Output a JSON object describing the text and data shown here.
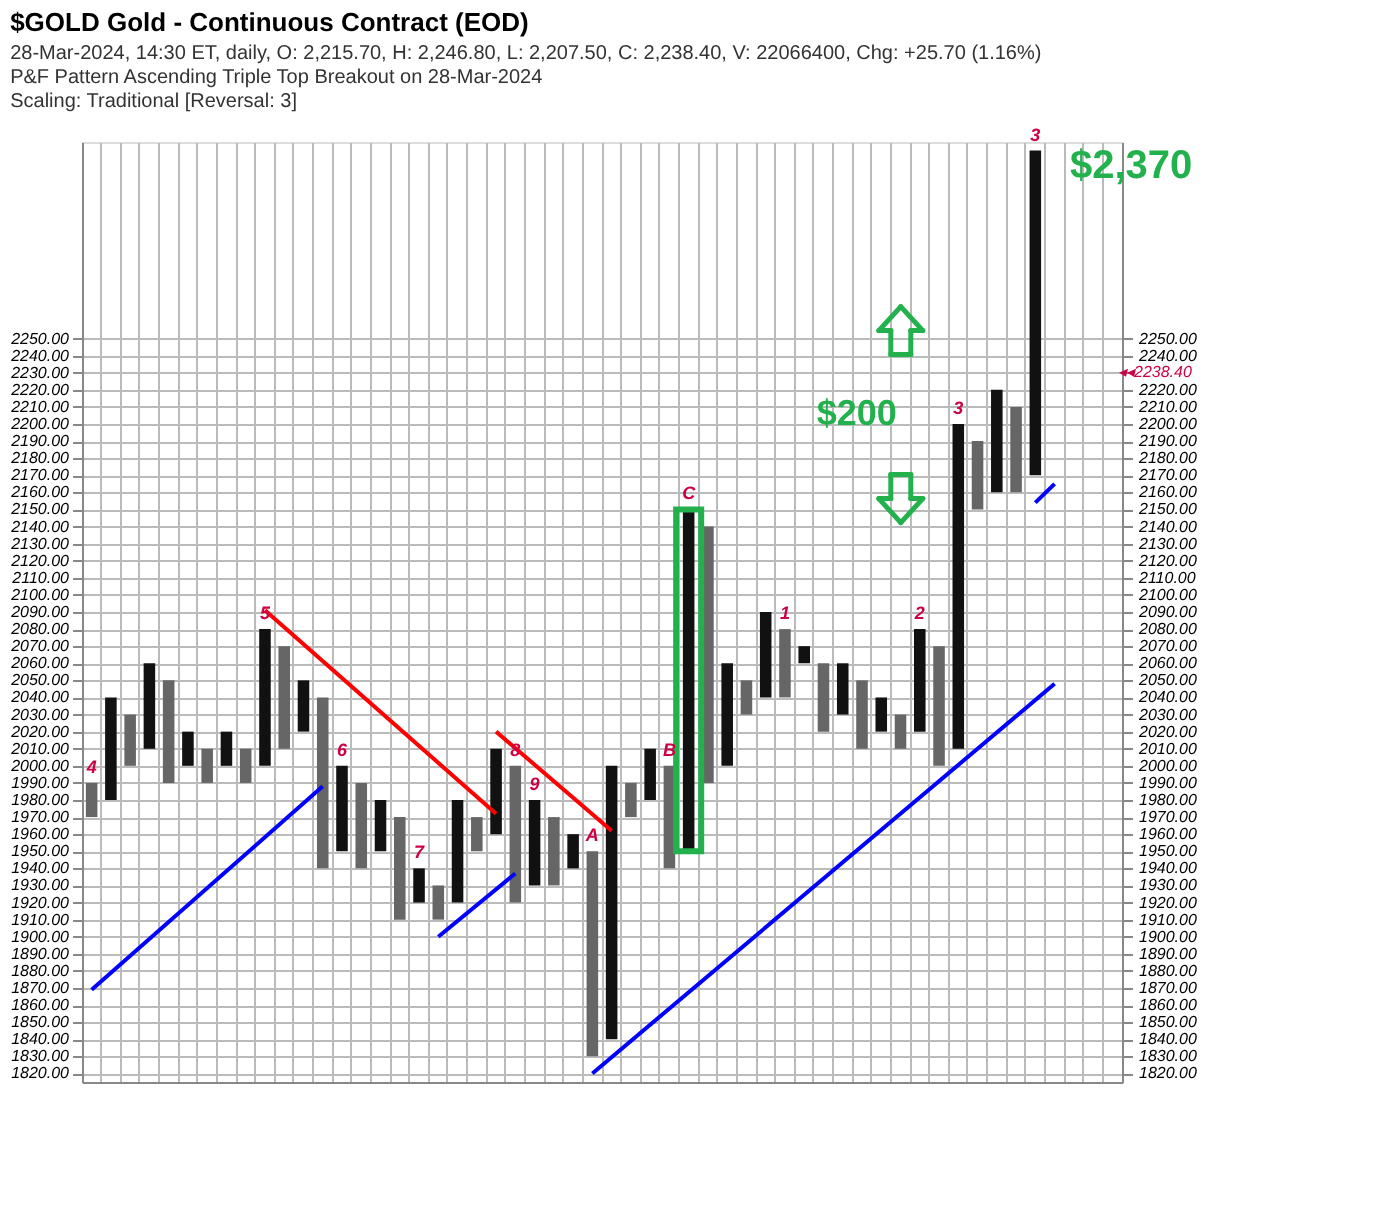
{
  "chart_data": {
    "type": "bar",
    "title": "$GOLD  Gold - Continuous Contract (EOD)",
    "subtitle": [
      "28-Mar-2024, 14:30 ET, daily, O: 2,215.70, H: 2,246.80, L: 2,207.50, C: 2,238.40, V: 22066400, Chg: +25.70 (1.16%)",
      "P&F Pattern  Ascending Triple Top Breakout on 28-Mar-2024",
      "Scaling: Traditional [Reversal: 3]"
    ],
    "categories": [
      "4",
      null,
      null,
      null,
      null,
      null,
      null,
      null,
      null,
      "5",
      null,
      null,
      null,
      "6",
      null,
      null,
      null,
      "7",
      null,
      null,
      null,
      null,
      "8",
      "9",
      null,
      null,
      "A",
      null,
      null,
      null,
      "B",
      "C",
      null,
      null,
      null,
      null,
      "1",
      null,
      null,
      null,
      null,
      null,
      null,
      "2",
      null,
      "3",
      null,
      null,
      null,
      "3",
      null,
      null,
      null,
      null
    ],
    "series": [
      {
        "color": "#666666",
        "base": [
          1970,
          null,
          2000,
          null,
          1990,
          null,
          1990,
          null,
          1990,
          null,
          2010,
          null,
          1940,
          null,
          1940,
          null,
          1910,
          null,
          1910,
          null,
          1950,
          null,
          1920,
          null,
          1930,
          null,
          1830,
          null,
          1970,
          null,
          1940,
          null,
          1990,
          null,
          2030,
          null,
          2040,
          null,
          2020,
          null,
          2010,
          null,
          2010,
          null,
          2000,
          null,
          2150,
          null,
          2160,
          null,
          null,
          null,
          null,
          null
        ],
        "values": [
          20,
          null,
          30,
          null,
          60,
          null,
          20,
          null,
          20,
          null,
          60,
          null,
          100,
          null,
          50,
          null,
          60,
          null,
          20,
          null,
          20,
          null,
          80,
          null,
          40,
          null,
          120,
          null,
          20,
          null,
          60,
          null,
          150,
          null,
          20,
          null,
          40,
          null,
          40,
          null,
          40,
          null,
          20,
          null,
          70,
          null,
          40,
          null,
          50,
          null,
          null,
          null,
          null,
          null
        ]
      },
      {
        "color": "#111111",
        "base": [
          null,
          1980,
          null,
          2010,
          null,
          2000,
          null,
          2000,
          null,
          2000,
          null,
          2020,
          null,
          1950,
          null,
          1950,
          null,
          1920,
          null,
          1920,
          null,
          1960,
          null,
          1930,
          null,
          1940,
          null,
          1840,
          null,
          1980,
          null,
          1950,
          null,
          2000,
          null,
          2040,
          null,
          2060,
          null,
          2030,
          null,
          2020,
          null,
          2020,
          null,
          2010,
          null,
          2160,
          null,
          2170,
          null,
          null,
          null,
          null
        ],
        "values": [
          null,
          60,
          null,
          50,
          null,
          20,
          null,
          20,
          null,
          80,
          null,
          30,
          null,
          50,
          null,
          30,
          null,
          20,
          null,
          60,
          null,
          50,
          null,
          50,
          null,
          20,
          null,
          160,
          null,
          30,
          null,
          200,
          null,
          60,
          null,
          50,
          null,
          10,
          null,
          30,
          null,
          20,
          null,
          60,
          null,
          190,
          null,
          60,
          null,
          190,
          null,
          null,
          null,
          null
        ]
      },
      {
        "type": "line",
        "color": "#ff0000",
        "values": [
          null,
          null,
          null,
          null,
          null,
          null,
          null,
          null,
          null,
          2091,
          null,
          null,
          null,
          null,
          null,
          null,
          null,
          null,
          null,
          null,
          null,
          1972,
          null,
          null,
          null,
          null,
          null,
          null,
          null,
          null,
          null,
          null,
          null,
          null,
          null,
          null,
          null,
          null,
          null,
          null,
          null,
          null,
          null,
          null,
          null,
          null,
          null,
          null,
          null,
          null,
          null,
          null,
          null,
          null
        ]
      },
      {
        "type": "line",
        "color": "#ff0000",
        "values": [
          null,
          null,
          null,
          null,
          null,
          null,
          null,
          null,
          null,
          null,
          null,
          null,
          null,
          null,
          null,
          null,
          null,
          null,
          null,
          null,
          null,
          2020,
          null,
          null,
          null,
          null,
          null,
          1962,
          null,
          null,
          null,
          null,
          null,
          null,
          null,
          null,
          null,
          null,
          null,
          null,
          null,
          null,
          null,
          null,
          null,
          null,
          null,
          null,
          null,
          null,
          null,
          null,
          null,
          null
        ]
      },
      {
        "type": "line",
        "color": "#0000ff",
        "values": [
          1869,
          null,
          null,
          null,
          null,
          null,
          null,
          null,
          null,
          null,
          null,
          null,
          1988,
          null,
          null,
          null,
          null,
          null,
          null,
          null,
          null,
          null,
          null,
          null,
          null,
          null,
          null,
          null,
          null,
          null,
          null,
          null,
          null,
          null,
          null,
          null,
          null,
          null,
          null,
          null,
          null,
          null,
          null,
          null,
          null,
          null,
          null,
          null,
          null,
          null,
          null,
          null,
          null,
          null
        ]
      },
      {
        "type": "line",
        "color": "#0000ff",
        "values": [
          null,
          null,
          null,
          null,
          null,
          null,
          null,
          null,
          null,
          null,
          null,
          null,
          null,
          null,
          null,
          null,
          null,
          null,
          1900,
          null,
          null,
          null,
          1937,
          null,
          null,
          null,
          null,
          null,
          null,
          null,
          null,
          null,
          null,
          null,
          null,
          null,
          null,
          null,
          null,
          null,
          null,
          null,
          null,
          null,
          null,
          null,
          null,
          null,
          null,
          null,
          null,
          null,
          null,
          null
        ]
      },
      {
        "type": "line",
        "color": "#0000ff",
        "values": [
          null,
          null,
          null,
          null,
          null,
          null,
          null,
          null,
          null,
          null,
          null,
          null,
          null,
          null,
          null,
          null,
          null,
          null,
          null,
          null,
          null,
          null,
          null,
          null,
          null,
          null,
          1820,
          null,
          null,
          null,
          null,
          null,
          null,
          null,
          null,
          null,
          null,
          null,
          null,
          null,
          null,
          null,
          null,
          null,
          null,
          null,
          null,
          null,
          null,
          null,
          2048,
          null,
          null,
          null
        ]
      },
      {
        "type": "line",
        "color": "#0000ff",
        "values": [
          null,
          null,
          null,
          null,
          null,
          null,
          null,
          null,
          null,
          null,
          null,
          null,
          null,
          null,
          null,
          null,
          null,
          null,
          null,
          null,
          null,
          null,
          null,
          null,
          null,
          null,
          null,
          null,
          null,
          null,
          null,
          null,
          null,
          null,
          null,
          null,
          null,
          null,
          null,
          null,
          null,
          null,
          null,
          null,
          null,
          null,
          null,
          null,
          null,
          2154,
          2165,
          null,
          null,
          null
        ]
      }
    ],
    "ylim": [
      1815,
      2365
    ],
    "yticks": [
      {
        "value": 1820,
        "label": "1820.00"
      },
      {
        "value": 1830,
        "label": "1830.00"
      },
      {
        "value": 1840,
        "label": "1840.00"
      },
      {
        "value": 1850,
        "label": "1850.00"
      },
      {
        "value": 1860,
        "label": "1860.00"
      },
      {
        "value": 1870,
        "label": "1870.00"
      },
      {
        "value": 1880,
        "label": "1880.00"
      },
      {
        "value": 1890,
        "label": "1890.00"
      },
      {
        "value": 1900,
        "label": "1900.00"
      },
      {
        "value": 1910,
        "label": "1910.00"
      },
      {
        "value": 1920,
        "label": "1920.00"
      },
      {
        "value": 1930,
        "label": "1930.00"
      },
      {
        "value": 1940,
        "label": "1940.00"
      },
      {
        "value": 1950,
        "label": "1950.00"
      },
      {
        "value": 1960,
        "label": "1960.00"
      },
      {
        "value": 1970,
        "label": "1970.00"
      },
      {
        "value": 1980,
        "label": "1980.00"
      },
      {
        "value": 1990,
        "label": "1990.00"
      },
      {
        "value": 2000,
        "label": "2000.00"
      },
      {
        "value": 2010,
        "label": "2010.00"
      },
      {
        "value": 2020,
        "label": "2020.00"
      },
      {
        "value": 2030,
        "label": "2030.00"
      },
      {
        "value": 2040,
        "label": "2040.00"
      },
      {
        "value": 2050,
        "label": "2050.00"
      },
      {
        "value": 2060,
        "label": "2060.00"
      },
      {
        "value": 2070,
        "label": "2070.00"
      },
      {
        "value": 2080,
        "label": "2080.00"
      },
      {
        "value": 2090,
        "label": "2090.00"
      },
      {
        "value": 2100,
        "label": "2100.00"
      },
      {
        "value": 2110,
        "label": "2110.00"
      },
      {
        "value": 2120,
        "label": "2120.00"
      },
      {
        "value": 2130,
        "label": "2130.00"
      },
      {
        "value": 2140,
        "label": "2140.00"
      },
      {
        "value": 2150,
        "label": "2150.00"
      },
      {
        "value": 2160,
        "label": "2160.00"
      },
      {
        "value": 2170,
        "label": "2170.00"
      },
      {
        "value": 2180,
        "label": "2180.00"
      },
      {
        "value": 2190,
        "label": "2190.00"
      },
      {
        "value": 2200,
        "label": "2200.00"
      },
      {
        "value": 2210,
        "label": "2210.00"
      },
      {
        "value": 2220,
        "label": "2220.00"
      },
      {
        "value": 2230,
        "label": "2230.00"
      },
      {
        "value": 2240,
        "label": "2240.00"
      },
      {
        "value": 2250,
        "label": "2250.00"
      }
    ],
    "y2lim": [
      1815,
      2365
    ],
    "y2ticks": [
      {
        "value": 1820,
        "label": "1820.00"
      },
      {
        "value": 1830,
        "label": "1830.00"
      },
      {
        "value": 1840,
        "label": "1840.00"
      },
      {
        "value": 1850,
        "label": "1850.00"
      },
      {
        "value": 1860,
        "label": "1860.00"
      },
      {
        "value": 1870,
        "label": "1870.00"
      },
      {
        "value": 1880,
        "label": "1880.00"
      },
      {
        "value": 1890,
        "label": "1890.00"
      },
      {
        "value": 1900,
        "label": "1900.00"
      },
      {
        "value": 1910,
        "label": "1910.00"
      },
      {
        "value": 1920,
        "label": "1920.00"
      },
      {
        "value": 1930,
        "label": "1930.00"
      },
      {
        "value": 1940,
        "label": "1940.00"
      },
      {
        "value": 1950,
        "label": "1950.00"
      },
      {
        "value": 1960,
        "label": "1960.00"
      },
      {
        "value": 1970,
        "label": "1970.00"
      },
      {
        "value": 1980,
        "label": "1980.00"
      },
      {
        "value": 1990,
        "label": "1990.00"
      },
      {
        "value": 2000,
        "label": "2000.00"
      },
      {
        "value": 2010,
        "label": "2010.00"
      },
      {
        "value": 2020,
        "label": "2020.00"
      },
      {
        "value": 2030,
        "label": "2030.00"
      },
      {
        "value": 2040,
        "label": "2040.00"
      },
      {
        "value": 2050,
        "label": "2050.00"
      },
      {
        "value": 2060,
        "label": "2060.00"
      },
      {
        "value": 2070,
        "label": "2070.00"
      },
      {
        "value": 2080,
        "label": "2080.00"
      },
      {
        "value": 2090,
        "label": "2090.00"
      },
      {
        "value": 2100,
        "label": "2100.00"
      },
      {
        "value": 2110,
        "label": "2110.00"
      },
      {
        "value": 2120,
        "label": "2120.00"
      },
      {
        "value": 2130,
        "label": "2130.00"
      },
      {
        "value": 2140,
        "label": "2140.00"
      },
      {
        "value": 2150,
        "label": "2150.00"
      },
      {
        "value": 2160,
        "label": "2160.00"
      },
      {
        "value": 2170,
        "label": "2170.00"
      },
      {
        "value": 2180,
        "label": "2180.00"
      },
      {
        "value": 2190,
        "label": "2190.00"
      },
      {
        "value": 2200,
        "label": "2200.00"
      },
      {
        "value": 2210,
        "label": "2210.00"
      },
      {
        "value": 2220,
        "label": "2220.00"
      },
      {
        "value": 2230,
        "label": null
      },
      {
        "value": 2240,
        "label": "2240.00"
      },
      {
        "value": 2250,
        "label": "2250.00"
      }
    ],
    "tick_labels": "y",
    "grid": true,
    "annotations": [
      "$200",
      "$2,370",
      "◂◂2238.40"
    ]
  }
}
